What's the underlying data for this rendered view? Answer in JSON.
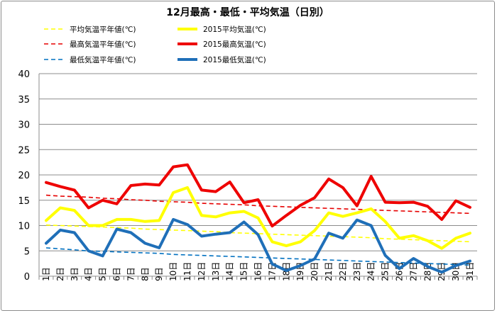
{
  "chart_data": {
    "type": "line",
    "title": "12月最高・最低・平均気温（日別）",
    "xlabel": "",
    "ylabel": "",
    "ylim": [
      0,
      40
    ],
    "yticks": [
      0,
      5,
      10,
      15,
      20,
      25,
      30,
      35,
      40
    ],
    "grid": "horizontal",
    "legend_position": "top",
    "categories": [
      "1日",
      "2日",
      "3日",
      "4日",
      "5日",
      "6日",
      "7日",
      "8日",
      "9日",
      "10日",
      "11日",
      "12日",
      "13日",
      "14日",
      "15日",
      "16日",
      "17日",
      "18日",
      "19日",
      "20日",
      "21日",
      "22日",
      "23日",
      "24日",
      "25日",
      "26日",
      "27日",
      "28日",
      "29日",
      "30日",
      "31日"
    ],
    "series": [
      {
        "name": "平均気温平年値(℃)",
        "color": "#ffff00",
        "style": "dashed",
        "width": 1.6,
        "values": [
          10.1,
          10.0,
          9.9,
          9.8,
          9.7,
          9.6,
          9.5,
          9.3,
          9.2,
          9.1,
          9.0,
          8.9,
          8.8,
          8.6,
          8.5,
          8.4,
          8.3,
          8.2,
          8.1,
          8.0,
          7.9,
          7.8,
          7.7,
          7.6,
          7.4,
          7.3,
          7.2,
          7.1,
          7.0,
          6.9,
          6.8
        ]
      },
      {
        "name": "2015平均気温(℃)",
        "color": "#ffff00",
        "style": "solid",
        "width": 4,
        "values": [
          11.0,
          13.5,
          13.0,
          10.0,
          10.0,
          11.2,
          11.2,
          10.8,
          11.0,
          16.5,
          17.5,
          12.0,
          11.7,
          12.5,
          12.8,
          11.5,
          6.8,
          6.0,
          6.8,
          9.0,
          12.5,
          11.8,
          12.5,
          13.3,
          10.8,
          7.5,
          8.0,
          7.0,
          5.5,
          7.5,
          8.5
        ]
      },
      {
        "name": "最高気温平年値(℃)",
        "color": "#e60000",
        "style": "dashed",
        "width": 1.6,
        "values": [
          16.0,
          15.8,
          15.7,
          15.6,
          15.4,
          15.3,
          15.1,
          15.0,
          14.8,
          14.7,
          14.6,
          14.4,
          14.3,
          14.2,
          14.1,
          13.9,
          13.8,
          13.7,
          13.6,
          13.5,
          13.4,
          13.3,
          13.2,
          13.1,
          13.0,
          12.9,
          12.8,
          12.7,
          12.6,
          12.5,
          12.4
        ]
      },
      {
        "name": "2015最高気温(℃)",
        "color": "#ee0000",
        "style": "solid",
        "width": 4,
        "values": [
          18.5,
          17.7,
          17.0,
          13.5,
          15.0,
          14.3,
          17.9,
          18.2,
          18.0,
          21.6,
          22.0,
          17.0,
          16.7,
          18.6,
          14.5,
          15.1,
          9.9,
          12.0,
          14.0,
          15.5,
          19.2,
          17.5,
          13.9,
          19.7,
          14.6,
          14.5,
          14.6,
          13.8,
          11.2,
          14.9,
          13.6
        ]
      },
      {
        "name": "最低気温平年値(℃)",
        "color": "#0070c0",
        "style": "dashed",
        "width": 1.6,
        "values": [
          5.6,
          5.4,
          5.2,
          5.0,
          4.9,
          4.8,
          4.7,
          4.6,
          4.5,
          4.3,
          4.2,
          4.1,
          4.0,
          3.9,
          3.8,
          3.7,
          3.6,
          3.5,
          3.4,
          3.3,
          3.2,
          3.1,
          3.0,
          2.9,
          2.8,
          2.7,
          2.6,
          2.5,
          2.4,
          2.3,
          2.2
        ]
      },
      {
        "name": "2015最低気温(℃)",
        "color": "#1f6fb8",
        "style": "solid",
        "width": 4,
        "values": [
          6.5,
          9.1,
          8.6,
          5.0,
          4.0,
          9.3,
          8.6,
          6.5,
          5.6,
          11.2,
          10.2,
          7.9,
          8.3,
          8.6,
          10.7,
          8.2,
          2.4,
          1.1,
          2.1,
          3.4,
          8.5,
          7.5,
          11.1,
          10.0,
          4.1,
          1.5,
          3.5,
          1.9,
          0.8,
          2.1,
          3.0
        ]
      }
    ]
  }
}
